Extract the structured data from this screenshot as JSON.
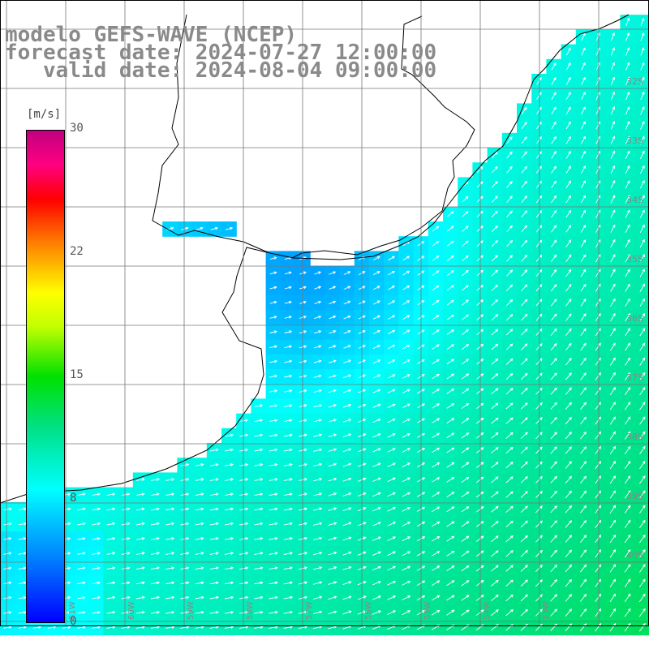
{
  "title": {
    "line1": "modelo GEFS-WAVE (NCEP)",
    "line2": "forecast date: 2024-07-27 12:00:00",
    "line3": "   valid date: 2024-08-04 09:00:00"
  },
  "colorbar": {
    "unit": "[m/s]",
    "ticks": [
      "30",
      "22",
      "15",
      "8",
      "0"
    ],
    "range": [
      0,
      30
    ],
    "colors": [
      "#0000ff",
      "#0080ff",
      "#00ffff",
      "#00e080",
      "#00e000",
      "#ffff00",
      "#ff0000",
      "#c00080"
    ]
  },
  "lat_labels": [
    "32S",
    "33S",
    "34S",
    "35S",
    "36S",
    "37S",
    "38S",
    "39S",
    "40S"
  ],
  "lon_labels": [
    "61W",
    "60W",
    "59W",
    "58W",
    "57W",
    "56W",
    "55W",
    "54W",
    "53W"
  ],
  "map_elements": {
    "background": "#ffffff",
    "land_color": "#ffffff",
    "coast_color": "#000000",
    "grid_color": "#777777",
    "arrow_color": "#ffffff"
  }
}
